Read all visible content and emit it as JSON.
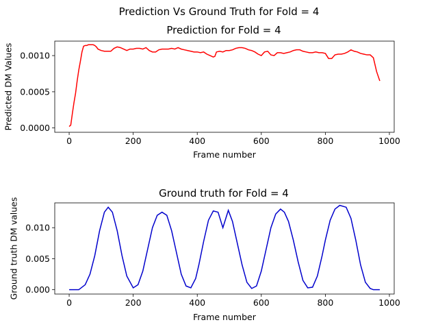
{
  "figure": {
    "suptitle": "Prediction Vs Ground Truth for Fold = 4"
  },
  "chart_data": [
    {
      "type": "line",
      "title": "Prediction for Fold = 4",
      "xlabel": "Frame number",
      "ylabel": "Predicted DM Values",
      "xlim": [
        -45,
        1015
      ],
      "ylim": [
        -6e-05,
        0.0012
      ],
      "xticks": [
        0,
        200,
        400,
        600,
        800,
        1000
      ],
      "xtick_labels": [
        "0",
        "200",
        "400",
        "600",
        "800",
        "1000"
      ],
      "yticks": [
        0.0,
        0.0005,
        0.001
      ],
      "ytick_labels": [
        "0.0000",
        "0.0005",
        "0.0010"
      ],
      "grid": false,
      "series": [
        {
          "color": "#ff0000",
          "x": [
            0,
            5,
            10,
            15,
            20,
            25,
            30,
            35,
            40,
            45,
            50,
            55,
            60,
            65,
            70,
            75,
            80,
            85,
            90,
            95,
            100,
            110,
            120,
            130,
            140,
            150,
            160,
            170,
            180,
            190,
            200,
            210,
            220,
            230,
            240,
            250,
            260,
            270,
            280,
            290,
            300,
            310,
            320,
            330,
            340,
            350,
            360,
            370,
            380,
            390,
            400,
            410,
            420,
            430,
            440,
            450,
            455,
            460,
            470,
            480,
            490,
            500,
            510,
            520,
            530,
            540,
            550,
            560,
            570,
            580,
            590,
            600,
            610,
            620,
            630,
            640,
            650,
            660,
            670,
            680,
            690,
            700,
            710,
            720,
            730,
            740,
            750,
            760,
            770,
            780,
            790,
            800,
            810,
            820,
            830,
            840,
            850,
            860,
            870,
            880,
            890,
            900,
            910,
            920,
            930,
            940,
            950,
            960,
            970
          ],
          "y": [
            2e-05,
            4e-05,
            0.0002,
            0.00035,
            0.00048,
            0.00065,
            0.0008,
            0.00092,
            0.00105,
            0.00113,
            0.00114,
            0.00114,
            0.00115,
            0.00115,
            0.00115,
            0.00115,
            0.00114,
            0.00112,
            0.00109,
            0.00108,
            0.00107,
            0.00106,
            0.00106,
            0.00106,
            0.0011,
            0.00112,
            0.00111,
            0.00109,
            0.00107,
            0.00109,
            0.00109,
            0.0011,
            0.0011,
            0.00109,
            0.00111,
            0.00107,
            0.00105,
            0.00105,
            0.00108,
            0.00109,
            0.00109,
            0.00109,
            0.0011,
            0.00109,
            0.00111,
            0.00109,
            0.00108,
            0.00107,
            0.00106,
            0.00105,
            0.00105,
            0.00104,
            0.00105,
            0.00102,
            0.001,
            0.00098,
            0.00099,
            0.00105,
            0.00106,
            0.00105,
            0.00107,
            0.00107,
            0.00108,
            0.0011,
            0.00111,
            0.00111,
            0.0011,
            0.00108,
            0.00107,
            0.00105,
            0.00102,
            0.001,
            0.00105,
            0.00106,
            0.00101,
            0.001,
            0.00104,
            0.00104,
            0.00103,
            0.00104,
            0.00105,
            0.00107,
            0.00108,
            0.00108,
            0.00106,
            0.00105,
            0.00104,
            0.00104,
            0.00105,
            0.00104,
            0.00104,
            0.00103,
            0.00096,
            0.00096,
            0.00101,
            0.00102,
            0.00102,
            0.00103,
            0.00105,
            0.00108,
            0.00106,
            0.00105,
            0.00103,
            0.00102,
            0.00101,
            0.00101,
            0.00097,
            0.00078,
            0.00065
          ]
        }
      ]
    },
    {
      "type": "line",
      "title": "Ground truth for Fold = 4",
      "xlabel": "Frame number",
      "ylabel": "Ground truth DM values",
      "xlim": [
        -45,
        1015
      ],
      "ylim": [
        -0.0007,
        0.014
      ],
      "xticks": [
        0,
        200,
        400,
        600,
        800,
        1000
      ],
      "xtick_labels": [
        "0",
        "200",
        "400",
        "600",
        "800",
        "1000"
      ],
      "yticks": [
        0.0,
        0.005,
        0.01
      ],
      "ytick_labels": [
        "0.000",
        "0.005",
        "0.010"
      ],
      "grid": false,
      "series": [
        {
          "color": "#0000cc",
          "x": [
            0,
            30,
            50,
            65,
            80,
            95,
            110,
            122,
            135,
            150,
            165,
            180,
            200,
            215,
            230,
            245,
            260,
            275,
            290,
            305,
            320,
            335,
            350,
            365,
            380,
            395,
            405,
            420,
            435,
            450,
            465,
            480,
            497,
            510,
            525,
            540,
            555,
            570,
            585,
            600,
            615,
            630,
            645,
            660,
            672,
            685,
            700,
            715,
            730,
            745,
            760,
            775,
            790,
            800,
            815,
            830,
            845,
            865,
            880,
            895,
            910,
            925,
            940,
            950,
            960,
            970
          ],
          "y": [
            0.0,
            0.0,
            0.0008,
            0.0025,
            0.0055,
            0.0095,
            0.0125,
            0.0133,
            0.0125,
            0.0095,
            0.0055,
            0.0022,
            0.0003,
            0.0008,
            0.003,
            0.0065,
            0.01,
            0.012,
            0.0125,
            0.012,
            0.0095,
            0.006,
            0.0025,
            0.0006,
            0.0003,
            0.0018,
            0.004,
            0.0078,
            0.0112,
            0.0127,
            0.0125,
            0.01,
            0.0128,
            0.011,
            0.0075,
            0.004,
            0.0012,
            0.0002,
            0.0006,
            0.003,
            0.0065,
            0.01,
            0.0122,
            0.013,
            0.0125,
            0.011,
            0.008,
            0.0045,
            0.0015,
            0.0003,
            0.0004,
            0.0022,
            0.0055,
            0.008,
            0.0112,
            0.013,
            0.0136,
            0.0133,
            0.0115,
            0.008,
            0.004,
            0.0012,
            0.0002,
            0.0,
            0.0,
            0.0
          ]
        }
      ]
    }
  ]
}
